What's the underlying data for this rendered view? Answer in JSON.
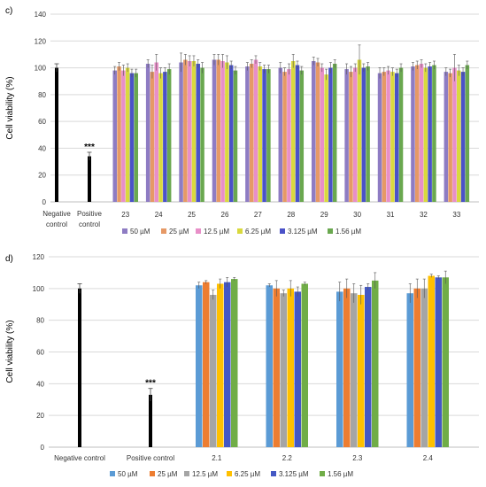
{
  "chart_data": [
    {
      "type": "bar",
      "panel_label": "c)",
      "ylabel": "Cell viability (%)",
      "ylim": [
        0,
        140
      ],
      "yticks": [
        0,
        20,
        40,
        60,
        80,
        100,
        120,
        140
      ],
      "grid": true,
      "legend_position": "bottom",
      "controls": [
        {
          "label_lines": [
            "Negative",
            "control"
          ],
          "value": 100,
          "error": 3,
          "color": "#000000"
        },
        {
          "label_lines": [
            "Positive",
            "control"
          ],
          "value": 34,
          "error": 3,
          "color": "#000000",
          "annotation": "***"
        }
      ],
      "categories": [
        "23",
        "24",
        "25",
        "26",
        "27",
        "28",
        "29",
        "30",
        "31",
        "32",
        "33"
      ],
      "series": [
        {
          "name": "50 µM",
          "color": "#8E7CC3",
          "values": [
            98,
            103,
            104,
            106,
            101,
            100,
            105,
            99,
            96,
            101,
            97
          ],
          "errors": [
            3,
            3,
            7,
            4,
            3,
            4,
            3,
            4,
            4,
            3,
            3
          ]
        },
        {
          "name": "25 µM",
          "color": "#E69966",
          "values": [
            101,
            97,
            106,
            106,
            103,
            97,
            104,
            97,
            97,
            102,
            96
          ],
          "errors": [
            3,
            5,
            4,
            4,
            3,
            3,
            3,
            4,
            3,
            3,
            3
          ]
        },
        {
          "name": "12.5 µM",
          "color": "#E88FC8",
          "values": [
            98,
            104,
            105,
            105,
            106,
            99,
            100,
            100,
            98,
            103,
            100
          ],
          "errors": [
            4,
            6,
            4,
            5,
            3,
            4,
            3,
            3,
            3,
            3,
            10
          ]
        },
        {
          "name": "6.25 µM",
          "color": "#D9D93E",
          "values": [
            100,
            96,
            105,
            104,
            101,
            105,
            95,
            106,
            97,
            100,
            98
          ],
          "errors": [
            3,
            4,
            4,
            5,
            3,
            5,
            4,
            11,
            3,
            3,
            4
          ]
        },
        {
          "name": "3.125 µM",
          "color": "#4A52C8",
          "values": [
            96,
            97,
            103,
            102,
            99,
            102,
            100,
            100,
            96,
            101,
            97
          ],
          "errors": [
            3,
            3,
            3,
            3,
            3,
            3,
            4,
            3,
            3,
            3,
            3
          ]
        },
        {
          "name": "1.56 µM",
          "color": "#6AA84F",
          "values": [
            96,
            99,
            100,
            98,
            99,
            98,
            103,
            101,
            100,
            102,
            102
          ],
          "errors": [
            3,
            4,
            4,
            3,
            3,
            3,
            3,
            3,
            3,
            3,
            3
          ]
        }
      ]
    },
    {
      "type": "bar",
      "panel_label": "d)",
      "ylabel": "Cell viability (%)",
      "ylim": [
        0,
        120
      ],
      "yticks": [
        0,
        20,
        40,
        60,
        80,
        100,
        120
      ],
      "grid": true,
      "legend_position": "bottom",
      "controls": [
        {
          "label_lines": [
            "Negative control"
          ],
          "value": 100,
          "error": 3,
          "color": "#000000"
        },
        {
          "label_lines": [
            "Positive control"
          ],
          "value": 33,
          "error": 4,
          "color": "#000000",
          "annotation": "***"
        }
      ],
      "categories": [
        "2.1",
        "2.2",
        "2.3",
        "2.4"
      ],
      "series": [
        {
          "name": "50 µM",
          "color": "#5B9BD5",
          "values": [
            102,
            102,
            98,
            97
          ],
          "errors": [
            2,
            1,
            6,
            6
          ]
        },
        {
          "name": "25 µM",
          "color": "#ED7D31",
          "values": [
            104,
            100,
            100,
            100
          ],
          "errors": [
            1,
            5,
            6,
            6
          ]
        },
        {
          "name": "12.5 µM",
          "color": "#A5A5A5",
          "values": [
            96,
            97,
            97,
            100
          ],
          "errors": [
            3,
            2,
            6,
            6
          ]
        },
        {
          "name": "6.25 µM",
          "color": "#FFC000",
          "values": [
            103,
            100,
            96,
            108
          ],
          "errors": [
            3,
            5,
            6,
            1
          ]
        },
        {
          "name": "3.125 µM",
          "color": "#4458C4",
          "values": [
            104,
            98,
            101,
            107
          ],
          "errors": [
            3,
            3,
            2,
            1
          ]
        },
        {
          "name": "1.56 µM",
          "color": "#70AD47",
          "values": [
            106,
            103,
            105,
            107
          ],
          "errors": [
            1,
            1,
            5,
            4
          ]
        }
      ]
    }
  ]
}
